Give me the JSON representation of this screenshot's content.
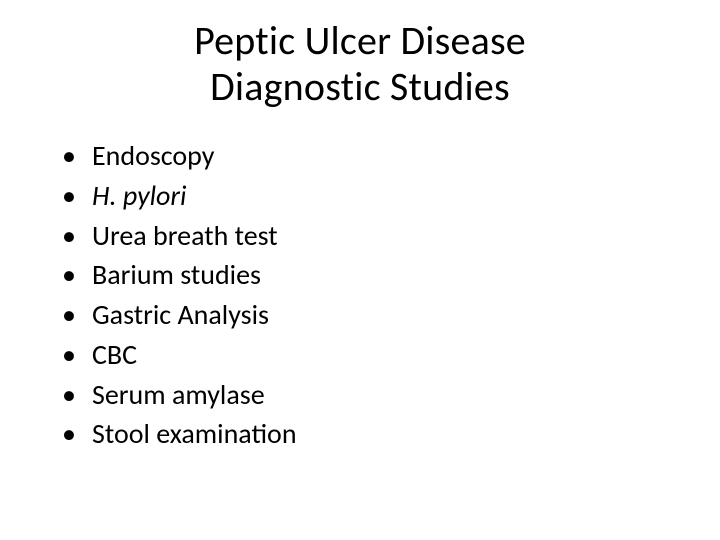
{
  "slide": {
    "type": "infographic",
    "background_color": "#ffffff",
    "text_color": "#000000",
    "title": {
      "line1": "Peptic Ulcer Disease",
      "line2": "Diagnostic Studies",
      "fontsize": 40,
      "font_weight": 400,
      "align": "center"
    },
    "bullets": {
      "fontsize": 28,
      "marker": "•",
      "items": [
        {
          "text": "Endoscopy",
          "italic": false
        },
        {
          "text": "H. pylori",
          "italic": true
        },
        {
          "text": "Urea breath test",
          "italic": false
        },
        {
          "text": "Barium studies",
          "italic": false
        },
        {
          "text": "Gastric Analysis",
          "italic": false
        },
        {
          "text": "CBC",
          "italic": false
        },
        {
          "text": "Serum amylase",
          "italic": false
        },
        {
          "text": "Stool examination",
          "italic": false
        }
      ]
    }
  }
}
